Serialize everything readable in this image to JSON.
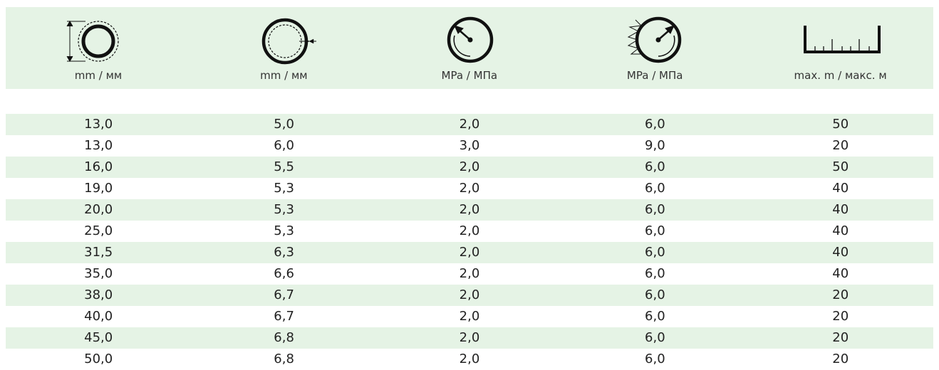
{
  "table": {
    "header": [
      "mm / мм",
      "mm / мм",
      "MPa / МПа",
      "MPa / МПа",
      "max. m / макс. м"
    ],
    "rows": [
      [
        "13,0",
        "5,0",
        "2,0",
        "6,0",
        "50"
      ],
      [
        "13,0",
        "6,0",
        "3,0",
        "9,0",
        "20"
      ],
      [
        "16,0",
        "5,5",
        "2,0",
        "6,0",
        "50"
      ],
      [
        "19,0",
        "5,3",
        "2,0",
        "6,0",
        "40"
      ],
      [
        "20,0",
        "5,3",
        "2,0",
        "6,0",
        "40"
      ],
      [
        "25,0",
        "5,3",
        "2,0",
        "6,0",
        "40"
      ],
      [
        "31,5",
        "6,3",
        "2,0",
        "6,0",
        "40"
      ],
      [
        "35,0",
        "6,6",
        "2,0",
        "6,0",
        "40"
      ],
      [
        "38,0",
        "6,7",
        "2,0",
        "6,0",
        "20"
      ],
      [
        "40,0",
        "6,7",
        "2,0",
        "6,0",
        "20"
      ],
      [
        "45,0",
        "6,8",
        "2,0",
        "6,0",
        "20"
      ],
      [
        "50,0",
        "6,8",
        "2,0",
        "6,0",
        "20"
      ]
    ]
  }
}
